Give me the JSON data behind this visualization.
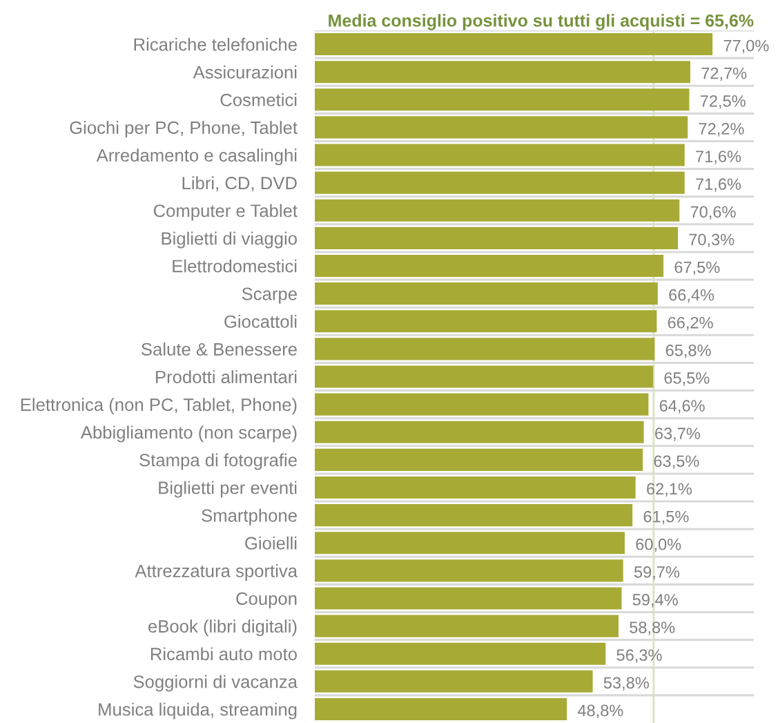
{
  "chart_data": {
    "type": "bar",
    "orientation": "horizontal",
    "title": "Media consiglio positivo su tutti gli acquisti = 65,6%",
    "categories": [
      "Ricariche telefoniche",
      "Assicurazioni",
      "Cosmetici",
      "Giochi per PC, Phone, Tablet",
      "Arredamento e casalinghi",
      "Libri, CD, DVD",
      "Computer e Tablet",
      "Biglietti di viaggio",
      "Elettrodomestici",
      "Scarpe",
      "Giocattoli",
      "Salute & Benessere",
      "Prodotti alimentari",
      "Elettronica (non PC, Tablet, Phone)",
      "Abbigliamento (non scarpe)",
      "Stampa di fotografie",
      "Biglietti per eventi",
      "Smartphone",
      "Gioielli",
      "Attrezzatura sportiva",
      "Coupon",
      "eBook (libri digitali)",
      "Ricambi auto moto",
      "Soggiorni di vacanza",
      "Musica liquida, streaming"
    ],
    "values": [
      77.0,
      72.7,
      72.5,
      72.2,
      71.6,
      71.6,
      70.6,
      70.3,
      67.5,
      66.4,
      66.2,
      65.8,
      65.5,
      64.6,
      63.7,
      63.5,
      62.1,
      61.5,
      60.0,
      59.7,
      59.4,
      58.8,
      56.3,
      53.8,
      48.8
    ],
    "value_labels": [
      "77,0%",
      "72,7%",
      "72,5%",
      "72,2%",
      "71,6%",
      "71,6%",
      "70,6%",
      "70,3%",
      "67,5%",
      "66,4%",
      "66,2%",
      "65,8%",
      "65,5%",
      "64,6%",
      "63,7%",
      "63,5%",
      "62,1%",
      "61,5%",
      "60,0%",
      "59,7%",
      "59,4%",
      "58,8%",
      "56,3%",
      "53,8%",
      "48,8%"
    ],
    "color": "#a7ab36",
    "xlim": [
      0,
      85
    ],
    "tick_labels": "y",
    "grid": "y",
    "ref_lines": [
      {
        "axis": "x",
        "value": 65.6,
        "color": "#d7e4bd"
      }
    ]
  }
}
